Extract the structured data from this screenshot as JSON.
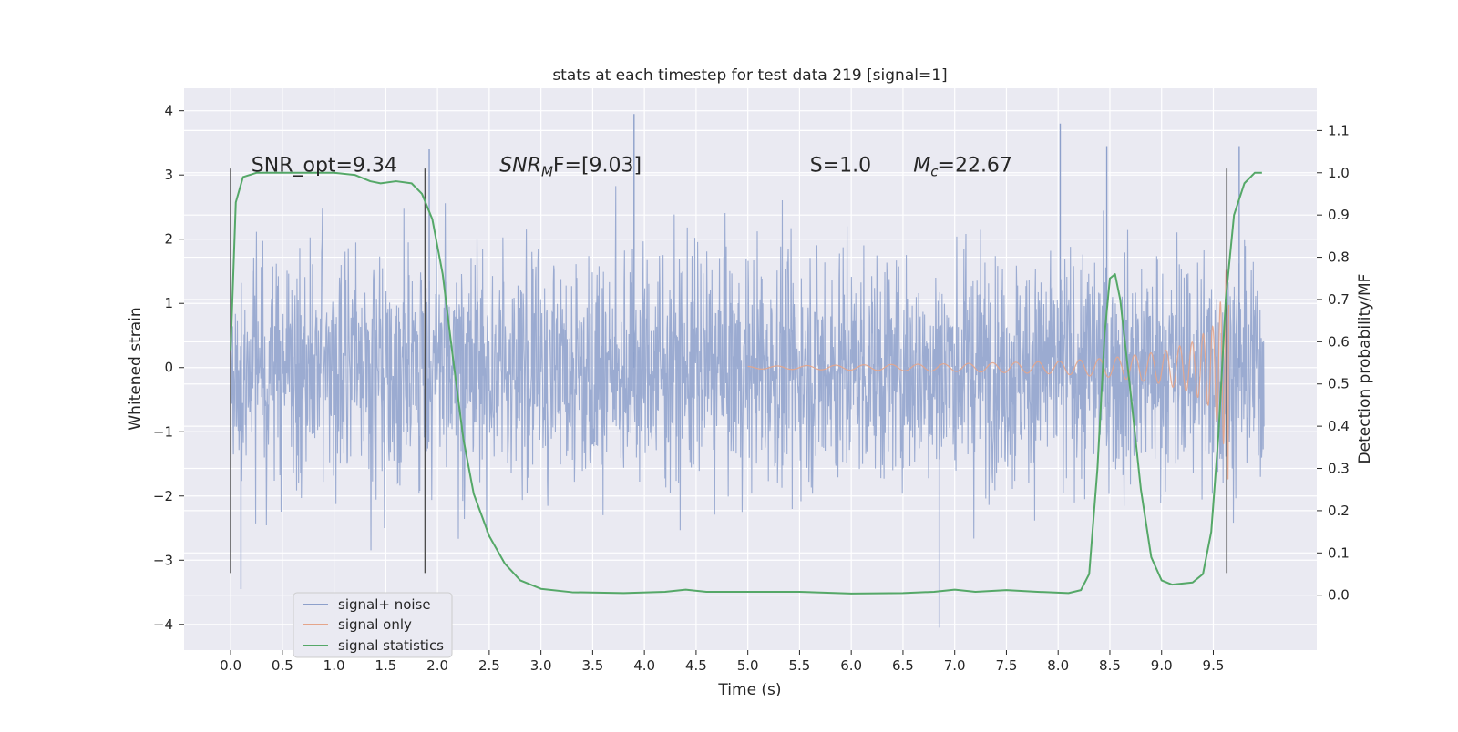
{
  "chart_data": {
    "type": "line",
    "title": "stats at each timestep for test data 219 [signal=1]",
    "xlabel": "Time (s)",
    "ylabel": "Whitened strain",
    "y2label": "Detection probability/MF",
    "xlim": [
      -0.45,
      10.5
    ],
    "ylim": [
      -4.4,
      4.35
    ],
    "y2lim": [
      -0.13,
      1.2
    ],
    "x_ticks": [
      "0.0",
      "0.5",
      "1.0",
      "1.5",
      "2.0",
      "2.5",
      "3.0",
      "3.5",
      "4.0",
      "4.5",
      "5.0",
      "5.5",
      "6.0",
      "6.5",
      "7.0",
      "7.5",
      "8.0",
      "8.5",
      "9.0",
      "9.5"
    ],
    "x_tick_values": [
      0.0,
      0.5,
      1.0,
      1.5,
      2.0,
      2.5,
      3.0,
      3.5,
      4.0,
      4.5,
      5.0,
      5.5,
      6.0,
      6.5,
      7.0,
      7.5,
      8.0,
      8.5,
      9.0,
      9.5
    ],
    "y_ticks": [
      "−4",
      "−3",
      "−2",
      "−1",
      "0",
      "1",
      "2",
      "3",
      "4"
    ],
    "y_tick_values": [
      -4,
      -3,
      -2,
      -1,
      0,
      1,
      2,
      3,
      4
    ],
    "y2_ticks": [
      "0.0",
      "0.1",
      "0.2",
      "0.3",
      "0.4",
      "0.5",
      "0.6",
      "0.7",
      "0.8",
      "0.9",
      "1.0",
      "1.1"
    ],
    "y2_tick_values": [
      0.0,
      0.1,
      0.2,
      0.3,
      0.4,
      0.5,
      0.6,
      0.7,
      0.8,
      0.9,
      1.0,
      1.1
    ],
    "grid": true,
    "legend_position": "lower-left",
    "series": [
      {
        "name": "signal+ noise",
        "color": "#8da0cb",
        "axis": "left",
        "kind": "noise",
        "x_range": [
          0.0,
          9.99
        ],
        "typical_amplitude": 1.2,
        "min": -4.05,
        "max": 3.95,
        "peaks": [
          [
            0.1,
            -3.45
          ],
          [
            3.9,
            3.95
          ],
          [
            6.85,
            -4.05
          ],
          [
            8.02,
            3.8
          ],
          [
            1.92,
            3.4
          ],
          [
            9.75,
            3.45
          ],
          [
            8.47,
            3.45
          ]
        ]
      },
      {
        "name": "signal only",
        "color": "#e5a58a",
        "axis": "left",
        "kind": "chirp",
        "x_range": [
          5.0,
          9.65
        ],
        "envelope": [
          [
            5.0,
            0.02
          ],
          [
            6.0,
            0.04
          ],
          [
            7.0,
            0.06
          ],
          [
            8.0,
            0.1
          ],
          [
            8.5,
            0.15
          ],
          [
            9.0,
            0.25
          ],
          [
            9.3,
            0.4
          ],
          [
            9.5,
            0.65
          ],
          [
            9.6,
            1.2
          ],
          [
            9.65,
            1.9
          ]
        ]
      },
      {
        "name": "signal statistics",
        "color": "#55a868",
        "axis": "right",
        "kind": "line",
        "points": [
          [
            0.0,
            0.58
          ],
          [
            0.05,
            0.93
          ],
          [
            0.12,
            0.99
          ],
          [
            0.25,
            1.0
          ],
          [
            0.6,
            1.0
          ],
          [
            1.0,
            1.0
          ],
          [
            1.2,
            0.995
          ],
          [
            1.35,
            0.98
          ],
          [
            1.45,
            0.975
          ],
          [
            1.6,
            0.98
          ],
          [
            1.75,
            0.975
          ],
          [
            1.85,
            0.95
          ],
          [
            1.95,
            0.89
          ],
          [
            2.05,
            0.76
          ],
          [
            2.15,
            0.56
          ],
          [
            2.25,
            0.37
          ],
          [
            2.35,
            0.24
          ],
          [
            2.5,
            0.14
          ],
          [
            2.65,
            0.075
          ],
          [
            2.8,
            0.035
          ],
          [
            3.0,
            0.015
          ],
          [
            3.3,
            0.007
          ],
          [
            3.8,
            0.005
          ],
          [
            4.2,
            0.008
          ],
          [
            4.4,
            0.013
          ],
          [
            4.6,
            0.008
          ],
          [
            5.0,
            0.008
          ],
          [
            5.5,
            0.008
          ],
          [
            6.0,
            0.004
          ],
          [
            6.5,
            0.005
          ],
          [
            6.8,
            0.008
          ],
          [
            7.0,
            0.013
          ],
          [
            7.2,
            0.008
          ],
          [
            7.5,
            0.012
          ],
          [
            7.8,
            0.008
          ],
          [
            8.1,
            0.005
          ],
          [
            8.22,
            0.012
          ],
          [
            8.3,
            0.05
          ],
          [
            8.38,
            0.3
          ],
          [
            8.45,
            0.62
          ],
          [
            8.5,
            0.75
          ],
          [
            8.55,
            0.76
          ],
          [
            8.6,
            0.7
          ],
          [
            8.7,
            0.48
          ],
          [
            8.8,
            0.25
          ],
          [
            8.9,
            0.09
          ],
          [
            9.0,
            0.035
          ],
          [
            9.1,
            0.025
          ],
          [
            9.3,
            0.03
          ],
          [
            9.4,
            0.05
          ],
          [
            9.48,
            0.15
          ],
          [
            9.55,
            0.38
          ],
          [
            9.62,
            0.7
          ],
          [
            9.7,
            0.9
          ],
          [
            9.8,
            0.975
          ],
          [
            9.9,
            1.0
          ],
          [
            9.97,
            1.0
          ]
        ]
      }
    ],
    "vertical_markers": [
      {
        "x": 0.0,
        "y_range": [
          -3.2,
          3.1
        ]
      },
      {
        "x": 1.88,
        "y_range": [
          -3.2,
          3.1
        ]
      },
      {
        "x": 9.63,
        "y_range": [
          -3.2,
          3.1
        ]
      }
    ],
    "annotations": [
      {
        "id": "snr-opt",
        "text": "SNR_opt=9.34",
        "x": 0.2,
        "y": 3.05
      },
      {
        "id": "snr-mf",
        "prefix": "SNR",
        "sub": "M",
        "suffix": "F=[9.03]",
        "x": 2.6,
        "y": 3.05
      },
      {
        "id": "s",
        "text": "S=1.0",
        "x": 5.6,
        "y": 3.05
      },
      {
        "id": "mc",
        "prefix": "M",
        "sub": "c",
        "suffix": "=22.67",
        "x": 6.6,
        "y": 3.05
      }
    ]
  }
}
